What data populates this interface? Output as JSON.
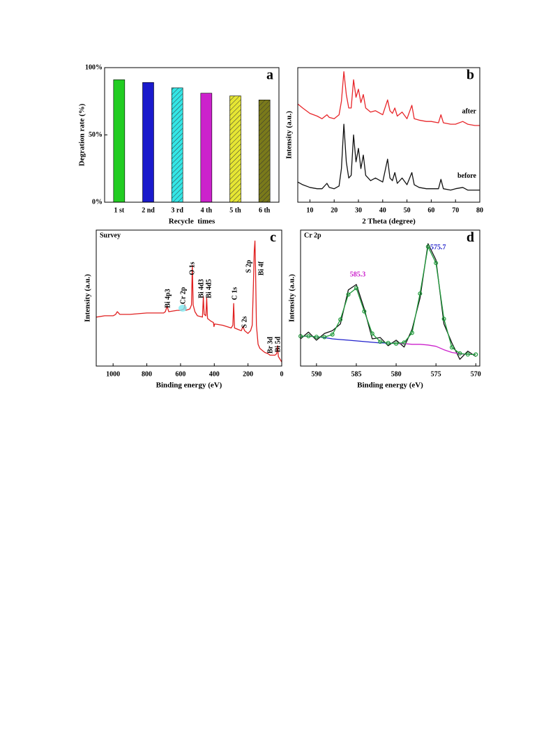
{
  "chart_data": [
    {
      "type": "bar",
      "label": "a",
      "categories": [
        "1 st",
        "2 nd",
        "3 rd",
        "4 th",
        "5 th",
        "6 th"
      ],
      "values": [
        91,
        89,
        85,
        81,
        79,
        76
      ],
      "colors": [
        "#22cc22",
        "#1a1acc",
        "#33e6e6",
        "#cc22cc",
        "#e6e633",
        "#7a7a1a"
      ],
      "hatched": [
        false,
        false,
        true,
        false,
        true,
        true
      ],
      "ylim": [
        0,
        100
      ],
      "yticks": [
        {
          "value": 0,
          "label": "0%"
        },
        {
          "value": 50,
          "label": "50%"
        },
        {
          "value": 100,
          "label": "100%"
        }
      ],
      "xlabel": "Recycle  times",
      "ylabel": "Degration rate (%)"
    },
    {
      "type": "line",
      "label": "b",
      "x": [
        5,
        7,
        10,
        13,
        15,
        17,
        18,
        20,
        22,
        23,
        24,
        25,
        26,
        27,
        28,
        29,
        30,
        31,
        32,
        33,
        35,
        37,
        40,
        42,
        43,
        44,
        45,
        46,
        48,
        50,
        52,
        53,
        55,
        58,
        60,
        63,
        64,
        65,
        68,
        70,
        73,
        75,
        78,
        80
      ],
      "xlim": [
        5,
        80
      ],
      "xticks": [
        10,
        20,
        30,
        40,
        50,
        60,
        70,
        80
      ],
      "ylim": [
        0,
        100
      ],
      "xlabel": "2 Theta (degree)",
      "ylabel": "Intensity (a.u.)",
      "series": [
        {
          "name": "after",
          "color": "#e8262a",
          "values": [
            73,
            70,
            66,
            64,
            62,
            65,
            63,
            62,
            65,
            75,
            97,
            80,
            70,
            70,
            91,
            78,
            84,
            74,
            80,
            70,
            67,
            68,
            65,
            76,
            68,
            66,
            70,
            64,
            67,
            62,
            72,
            62,
            61,
            60,
            60,
            59,
            65,
            59,
            58,
            58,
            60,
            58,
            57,
            57
          ]
        },
        {
          "name": "before",
          "color": "#111111",
          "values": [
            15,
            13,
            11,
            10,
            10,
            14,
            11,
            10,
            12,
            25,
            58,
            30,
            18,
            20,
            50,
            30,
            40,
            25,
            35,
            20,
            16,
            18,
            15,
            32,
            18,
            16,
            22,
            14,
            18,
            13,
            22,
            13,
            11,
            10,
            10,
            10,
            17,
            10,
            9,
            10,
            11,
            9,
            9,
            9
          ]
        }
      ]
    },
    {
      "type": "line",
      "label": "c",
      "title": "Survey",
      "annotations": [
        "Bi 4p3",
        "Cr 2p",
        "O 1s",
        "Bi 4d3",
        "Bi 4d5",
        "C 1s",
        "S 2s",
        "S 2p",
        "Bi 4f",
        "Br 3d",
        "Bi 5d"
      ],
      "x": [
        1100,
        1050,
        1000,
        985,
        975,
        960,
        900,
        800,
        700,
        690,
        680,
        670,
        620,
        600,
        580,
        575,
        570,
        545,
        535,
        530,
        525,
        515,
        500,
        470,
        465,
        460,
        450,
        445,
        440,
        420,
        405,
        402,
        398,
        350,
        300,
        290,
        285,
        280,
        260,
        240,
        230,
        220,
        200,
        185,
        175,
        168,
        163,
        159,
        155,
        150,
        140,
        130,
        110,
        100,
        80,
        70,
        60,
        40,
        30,
        25,
        20,
        10,
        0
      ],
      "xlim": [
        1100,
        0
      ],
      "xticks": [
        1000,
        800,
        600,
        400,
        200,
        0
      ],
      "ylim": [
        0,
        100
      ],
      "xlabel": "Binding energy (eV)",
      "ylabel": "Intensity (a.u.)",
      "series": [
        {
          "color": "#e02020",
          "values": [
            36,
            37,
            37,
            38,
            40,
            38,
            38,
            39,
            39,
            40,
            44,
            40,
            41,
            41,
            42,
            45,
            41,
            42,
            45,
            74,
            45,
            40,
            37,
            36,
            51,
            38,
            37,
            50,
            35,
            33,
            32,
            29,
            31,
            30,
            28,
            30,
            46,
            28,
            27,
            26,
            29,
            26,
            24,
            26,
            30,
            60,
            85,
            92,
            70,
            30,
            16,
            13,
            11,
            10,
            9,
            8,
            8,
            8,
            9,
            15,
            7,
            5,
            3
          ]
        }
      ]
    },
    {
      "type": "line",
      "label": "d",
      "title": "Cr 2p",
      "annotations": [
        {
          "text": "585.3",
          "color": "#cc22cc"
        },
        {
          "text": "575.7",
          "color": "#2020cc"
        }
      ],
      "x": [
        592,
        591,
        590,
        589,
        588,
        587,
        586,
        585,
        584,
        583,
        582,
        581,
        580,
        579,
        578,
        577,
        576,
        575,
        574,
        573,
        572,
        571,
        570
      ],
      "xlim": [
        592,
        569.5
      ],
      "xticks": [
        590,
        585,
        580,
        575,
        570
      ],
      "ylim": [
        0,
        100
      ],
      "xlabel": "Binding energy (eV)",
      "ylabel": "Intensity (a.u.)",
      "series": [
        {
          "color": "#111111",
          "values": [
            20,
            25,
            19,
            24,
            26,
            31,
            56,
            60,
            42,
            20,
            21,
            15,
            19,
            14,
            27,
            50,
            90,
            78,
            31,
            17,
            5,
            11,
            7
          ]
        },
        {
          "color": "#2020cc",
          "values": [
            22,
            22,
            21.5,
            21,
            20,
            19.5,
            19,
            18.5,
            18,
            17.5,
            17,
            17,
            16.5,
            null,
            null,
            null,
            null,
            null,
            null,
            null,
            null,
            null,
            null
          ]
        },
        {
          "color": "#cc22cc",
          "values": [
            null,
            null,
            null,
            null,
            null,
            null,
            null,
            null,
            null,
            null,
            null,
            null,
            16.5,
            16.5,
            16,
            16,
            15.5,
            14.5,
            12,
            10,
            9,
            8.5,
            8.5
          ]
        },
        {
          "color": "#1e9a3a",
          "markers": "circle",
          "values": [
            22,
            22,
            21.5,
            21.3,
            23.2,
            34.2,
            52.6,
            57.3,
            40.2,
            23.9,
            17.9,
            17,
            16.5,
            17.3,
            24.4,
            53.3,
            87.8,
            75.8,
            34.7,
            13.7,
            9.3,
            8.5,
            8.5
          ]
        }
      ]
    }
  ]
}
